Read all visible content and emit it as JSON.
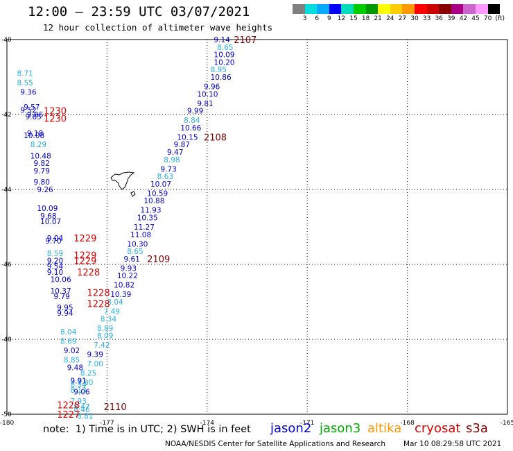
{
  "title": "12:00 — 23:59 UTC 03/07/2021",
  "subtitle": "12 hour collection of altimeter wave heights",
  "colorbar": {
    "colors": [
      "#7f7f7f",
      "#00dddd",
      "#00aaff",
      "#0000ff",
      "#00ddbb",
      "#00cc00",
      "#009900",
      "#ffff00",
      "#ffcc00",
      "#ff9900",
      "#ff0000",
      "#cc0000",
      "#880000",
      "#aa0088",
      "#cc66cc",
      "#ff99ff",
      "#000000"
    ],
    "labels": [
      "3",
      "6",
      "9",
      "12",
      "15",
      "18",
      "21",
      "24",
      "27",
      "30",
      "33",
      "36",
      "39",
      "42",
      "45",
      "70",
      "(ft)"
    ]
  },
  "map": {
    "x_ticks": [
      "-180",
      "-177",
      "-174",
      "-171",
      "-168",
      "-165"
    ],
    "y_ticks": [
      "-40",
      "-42",
      "-44",
      "-46",
      "-48",
      "-50"
    ],
    "lon_range": [
      -180,
      -165
    ],
    "lat_range": [
      -50,
      -40
    ]
  },
  "colors": {
    "c6": "#2ab0e0",
    "c9": "#0000c8",
    "c12": "#0000cc",
    "time_s3a": "#7a0000",
    "time_cryo": "#e00000"
  },
  "track_points": [
    {
      "v": "9.14",
      "lon": -173.8,
      "lat": -40.0,
      "c": "c9"
    },
    {
      "v": "8.65",
      "lon": -173.7,
      "lat": -40.2,
      "c": "c6"
    },
    {
      "v": "10.09",
      "lon": -173.8,
      "lat": -40.4,
      "c": "c9"
    },
    {
      "v": "10.20",
      "lon": -173.8,
      "lat": -40.6,
      "c": "c9"
    },
    {
      "v": "8.95",
      "lon": -173.9,
      "lat": -40.8,
      "c": "c6"
    },
    {
      "v": "10.86",
      "lon": -173.9,
      "lat": -41.0,
      "c": "c9"
    },
    {
      "v": "9.96",
      "lon": -174.1,
      "lat": -41.25,
      "c": "c9"
    },
    {
      "v": "10.10",
      "lon": -174.3,
      "lat": -41.45,
      "c": "c9"
    },
    {
      "v": "9.81",
      "lon": -174.3,
      "lat": -41.7,
      "c": "c9"
    },
    {
      "v": "9.99",
      "lon": -174.6,
      "lat": -41.9,
      "c": "c9"
    },
    {
      "v": "8.84",
      "lon": -174.7,
      "lat": -42.15,
      "c": "c6"
    },
    {
      "v": "10.66",
      "lon": -174.8,
      "lat": -42.35,
      "c": "c9"
    },
    {
      "v": "10.15",
      "lon": -174.9,
      "lat": -42.6,
      "c": "c9"
    },
    {
      "v": "9.87",
      "lon": -175.0,
      "lat": -42.8,
      "c": "c9"
    },
    {
      "v": "9.47",
      "lon": -175.2,
      "lat": -43.0,
      "c": "c9"
    },
    {
      "v": "8.98",
      "lon": -175.3,
      "lat": -43.2,
      "c": "c6"
    },
    {
      "v": "9.73",
      "lon": -175.4,
      "lat": -43.45,
      "c": "c9"
    },
    {
      "v": "8.63",
      "lon": -175.5,
      "lat": -43.65,
      "c": "c6"
    },
    {
      "v": "10.07",
      "lon": -175.7,
      "lat": -43.85,
      "c": "c9"
    },
    {
      "v": "10.59",
      "lon": -175.8,
      "lat": -44.1,
      "c": "c9"
    },
    {
      "v": "10.88",
      "lon": -175.9,
      "lat": -44.3,
      "c": "c9"
    },
    {
      "v": "11.93",
      "lon": -176.0,
      "lat": -44.55,
      "c": "c12"
    },
    {
      "v": "10.35",
      "lon": -176.1,
      "lat": -44.75,
      "c": "c9"
    },
    {
      "v": "11.27",
      "lon": -176.2,
      "lat": -45.0,
      "c": "c9"
    },
    {
      "v": "11.08",
      "lon": -176.3,
      "lat": -45.2,
      "c": "c9"
    },
    {
      "v": "10.30",
      "lon": -176.4,
      "lat": -45.45,
      "c": "c9"
    },
    {
      "v": "8.65",
      "lon": -176.4,
      "lat": -45.65,
      "c": "c6"
    },
    {
      "v": "9.61",
      "lon": -176.5,
      "lat": -45.85,
      "c": "c9"
    },
    {
      "v": "9.93",
      "lon": -176.6,
      "lat": -46.1,
      "c": "c9"
    },
    {
      "v": "10.22",
      "lon": -176.7,
      "lat": -46.3,
      "c": "c9"
    },
    {
      "v": "10.82",
      "lon": -176.8,
      "lat": -46.55,
      "c": "c9"
    },
    {
      "v": "10.39",
      "lon": -176.9,
      "lat": -46.8,
      "c": "c9"
    },
    {
      "v": "8.04",
      "lon": -177.0,
      "lat": -47.0,
      "c": "c6"
    },
    {
      "v": "7.49",
      "lon": -177.1,
      "lat": -47.25,
      "c": "c6"
    },
    {
      "v": "8.34",
      "lon": -177.2,
      "lat": -47.45,
      "c": "c6"
    },
    {
      "v": "8.89",
      "lon": -177.3,
      "lat": -47.7,
      "c": "c6"
    },
    {
      "v": "8.09",
      "lon": -177.3,
      "lat": -47.9,
      "c": "c6"
    },
    {
      "v": "7.42",
      "lon": -177.4,
      "lat": -48.15,
      "c": "c6"
    },
    {
      "v": "9.39",
      "lon": -177.6,
      "lat": -48.4,
      "c": "c9"
    },
    {
      "v": "7.00",
      "lon": -177.6,
      "lat": -48.65,
      "c": "c6"
    },
    {
      "v": "8.25",
      "lon": -177.8,
      "lat": -48.9,
      "c": "c6"
    },
    {
      "v": "7.80",
      "lon": -177.9,
      "lat": -49.15,
      "c": "c6"
    },
    {
      "v": "9.06",
      "lon": -178.0,
      "lat": -49.4,
      "c": "c9"
    },
    {
      "v": "7.93",
      "lon": -178.1,
      "lat": -49.65,
      "c": "c6"
    },
    {
      "v": "8.71",
      "lon": -179.7,
      "lat": -40.9,
      "c": "c6"
    },
    {
      "v": "8.55",
      "lon": -179.7,
      "lat": -41.15,
      "c": "c6"
    },
    {
      "v": "9.36",
      "lon": -179.6,
      "lat": -41.4,
      "c": "c9"
    },
    {
      "v": "9.57",
      "lon": -179.5,
      "lat": -41.8,
      "c": "c9"
    },
    {
      "v": "9.52",
      "lon": -179.6,
      "lat": -41.88,
      "c": "c9"
    },
    {
      "v": "9.86",
      "lon": -179.4,
      "lat": -42.0,
      "c": "c9"
    },
    {
      "v": "9.85",
      "lon": -179.45,
      "lat": -42.06,
      "c": "c9"
    },
    {
      "v": "9.18",
      "lon": -179.4,
      "lat": -42.5,
      "c": "c9"
    },
    {
      "v": "10.08",
      "lon": -179.5,
      "lat": -42.56,
      "c": "c9"
    },
    {
      "v": "8.29",
      "lon": -179.3,
      "lat": -42.8,
      "c": "c6"
    },
    {
      "v": "10.48",
      "lon": -179.3,
      "lat": -43.1,
      "c": "c9"
    },
    {
      "v": "9.82",
      "lon": -179.2,
      "lat": -43.3,
      "c": "c9"
    },
    {
      "v": "9.79",
      "lon": -179.2,
      "lat": -43.5,
      "c": "c9"
    },
    {
      "v": "9.80",
      "lon": -179.2,
      "lat": -43.8,
      "c": "c9"
    },
    {
      "v": "9.26",
      "lon": -179.1,
      "lat": -44.0,
      "c": "c9"
    },
    {
      "v": "10.09",
      "lon": -179.1,
      "lat": -44.5,
      "c": "c9"
    },
    {
      "v": "9.68",
      "lon": -179.0,
      "lat": -44.7,
      "c": "c9"
    },
    {
      "v": "10.07",
      "lon": -179.0,
      "lat": -44.85,
      "c": "c9"
    },
    {
      "v": "9.04",
      "lon": -178.8,
      "lat": -45.3,
      "c": "c9"
    },
    {
      "v": "9.70",
      "lon": -178.85,
      "lat": -45.37,
      "c": "c9"
    },
    {
      "v": "8.59",
      "lon": -178.8,
      "lat": -45.7,
      "c": "c6"
    },
    {
      "v": "9.20",
      "lon": -178.8,
      "lat": -45.9,
      "c": "c9"
    },
    {
      "v": "9.54",
      "lon": -178.8,
      "lat": -46.05,
      "c": "c9"
    },
    {
      "v": "9.10",
      "lon": -178.8,
      "lat": -46.2,
      "c": "c9"
    },
    {
      "v": "10.06",
      "lon": -178.7,
      "lat": -46.4,
      "c": "c9"
    },
    {
      "v": "10.37",
      "lon": -178.7,
      "lat": -46.7,
      "c": "c9"
    },
    {
      "v": "9.79",
      "lon": -178.6,
      "lat": -46.85,
      "c": "c9"
    },
    {
      "v": "9.95",
      "lon": -178.5,
      "lat": -47.15,
      "c": "c9"
    },
    {
      "v": "9.94",
      "lon": -178.5,
      "lat": -47.3,
      "c": "c9"
    },
    {
      "v": "8.04",
      "lon": -178.4,
      "lat": -47.8,
      "c": "c6"
    },
    {
      "v": "8.69",
      "lon": -178.4,
      "lat": -48.05,
      "c": "c6"
    },
    {
      "v": "9.02",
      "lon": -178.3,
      "lat": -48.3,
      "c": "c9"
    },
    {
      "v": "8.85",
      "lon": -178.3,
      "lat": -48.55,
      "c": "c6"
    },
    {
      "v": "9.48",
      "lon": -178.2,
      "lat": -48.75,
      "c": "c9"
    },
    {
      "v": "9.91",
      "lon": -178.1,
      "lat": -49.1,
      "c": "c9"
    },
    {
      "v": "8.34",
      "lon": -178.1,
      "lat": -49.2,
      "c": "c6"
    },
    {
      "v": "8.13",
      "lon": -178.1,
      "lat": -49.35,
      "c": "c6"
    },
    {
      "v": "8.47",
      "lon": -178.0,
      "lat": -49.8,
      "c": "c6"
    },
    {
      "v": "8.46",
      "lon": -178.0,
      "lat": -49.87,
      "c": "c6"
    },
    {
      "v": "8.81",
      "lon": -177.9,
      "lat": -50.05,
      "c": "c6"
    }
  ],
  "time_labels": [
    {
      "t": "2107",
      "lon": -173.2,
      "lat": -40.0,
      "c": "time_s3a"
    },
    {
      "t": "2108",
      "lon": -174.1,
      "lat": -42.6,
      "c": "time_s3a"
    },
    {
      "t": "2109",
      "lon": -175.8,
      "lat": -45.85,
      "c": "time_s3a"
    },
    {
      "t": "2110",
      "lon": -177.1,
      "lat": -49.8,
      "c": "time_s3a"
    },
    {
      "t": "1230",
      "lon": -178.9,
      "lat": -41.9,
      "c": "time_cryo"
    },
    {
      "t": "1230",
      "lon": -178.9,
      "lat": -42.1,
      "c": "time_cryo"
    },
    {
      "t": "1229",
      "lon": -178.0,
      "lat": -45.3,
      "c": "time_cryo"
    },
    {
      "t": "1229",
      "lon": -178.0,
      "lat": -45.75,
      "c": "time_cryo"
    },
    {
      "t": "1229",
      "lon": -178.0,
      "lat": -45.9,
      "c": "time_cryo"
    },
    {
      "t": "1228",
      "lon": -177.9,
      "lat": -46.2,
      "c": "time_cryo"
    },
    {
      "t": "1228",
      "lon": -177.6,
      "lat": -46.75,
      "c": "time_cryo"
    },
    {
      "t": "1228",
      "lon": -177.6,
      "lat": -47.05,
      "c": "time_cryo"
    },
    {
      "t": "1228",
      "lon": -178.5,
      "lat": -49.75,
      "c": "time_cryo"
    },
    {
      "t": "1227",
      "lon": -178.5,
      "lat": -50.0,
      "c": "time_cryo"
    }
  ],
  "note": "note:  1) Time is in UTC; 2) SWH is in feet",
  "satellites": [
    {
      "name": "jason2",
      "color": "#0000dd"
    },
    {
      "name": "jason3",
      "color": "#00aa00"
    },
    {
      "name": "altika",
      "color": "#ff9900"
    },
    {
      "name": "cryosat",
      "color": "#dd0000"
    },
    {
      "name": "s3a",
      "color": "#880000"
    }
  ],
  "footer": "NOAA/NESDIS Center for Satellite Applications and Research",
  "footer_time": "Mar 10 08:29:58 UTC 2021"
}
